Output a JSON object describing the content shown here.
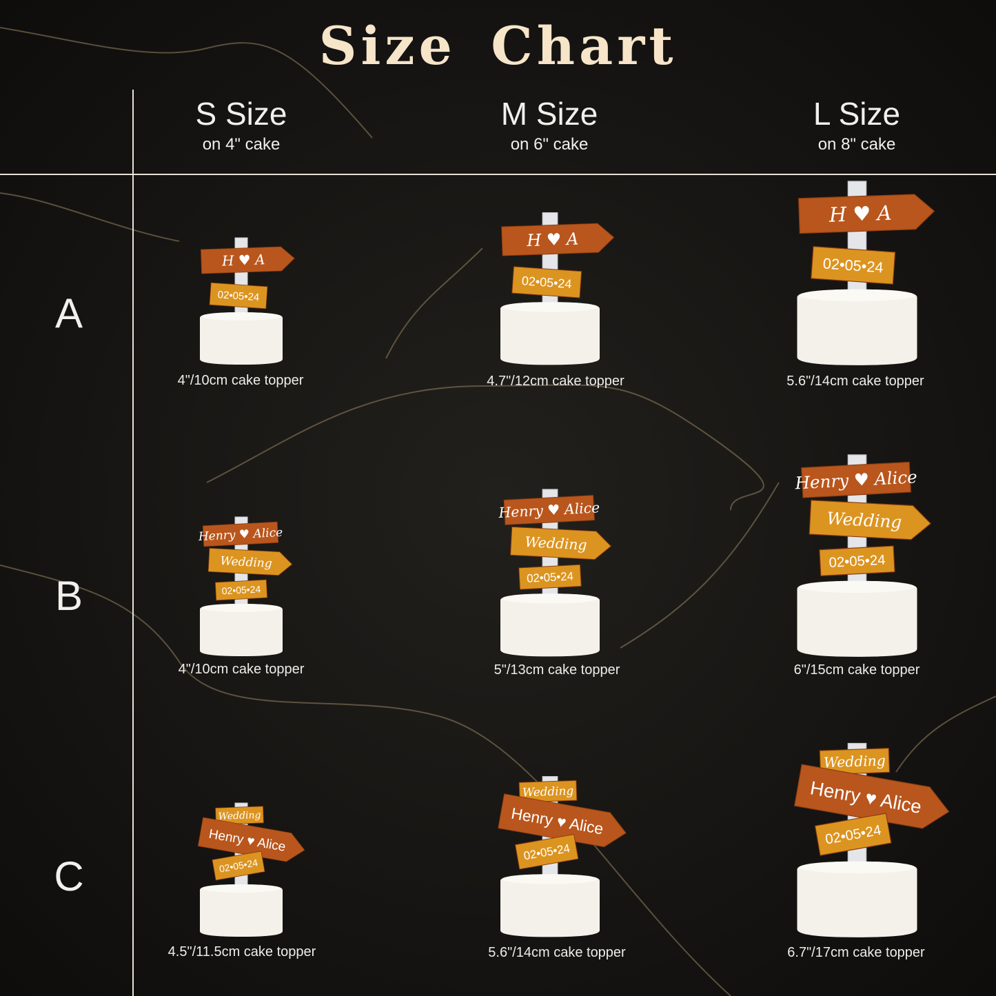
{
  "title": "Size Chart",
  "colors": {
    "title": "#f6e5c9",
    "background": "#141311",
    "sign_dark": "#b9561d",
    "sign_gold": "#dc9420",
    "cake": "#f4f1ea",
    "text": "#f2f0ec"
  },
  "columns": [
    {
      "name": "S Size",
      "sub": "on 4\" cake"
    },
    {
      "name": "M Size",
      "sub": "on 6\" cake"
    },
    {
      "name": "L Size",
      "sub": "on 8\" cake"
    }
  ],
  "rows": [
    {
      "label": "A",
      "signs": [
        "H ♥ A",
        "02•05•24"
      ],
      "captions": [
        "4\"/10cm cake topper",
        "4.7\"/12cm cake topper",
        "5.6\"/14cm cake topper"
      ]
    },
    {
      "label": "B",
      "signs": [
        "Henry ♥ Alice",
        "Wedding",
        "02•05•24"
      ],
      "captions": [
        "4\"/10cm cake topper",
        "5\"/13cm cake topper",
        "6\"/15cm cake topper"
      ]
    },
    {
      "label": "C",
      "signs": [
        "Wedding",
        "Henry ♥ Alice",
        "02•05•24"
      ],
      "captions": [
        "4.5\"/11.5cm cake topper",
        "5.6\"/14cm cake topper",
        "6.7\"/17cm cake topper"
      ]
    }
  ]
}
